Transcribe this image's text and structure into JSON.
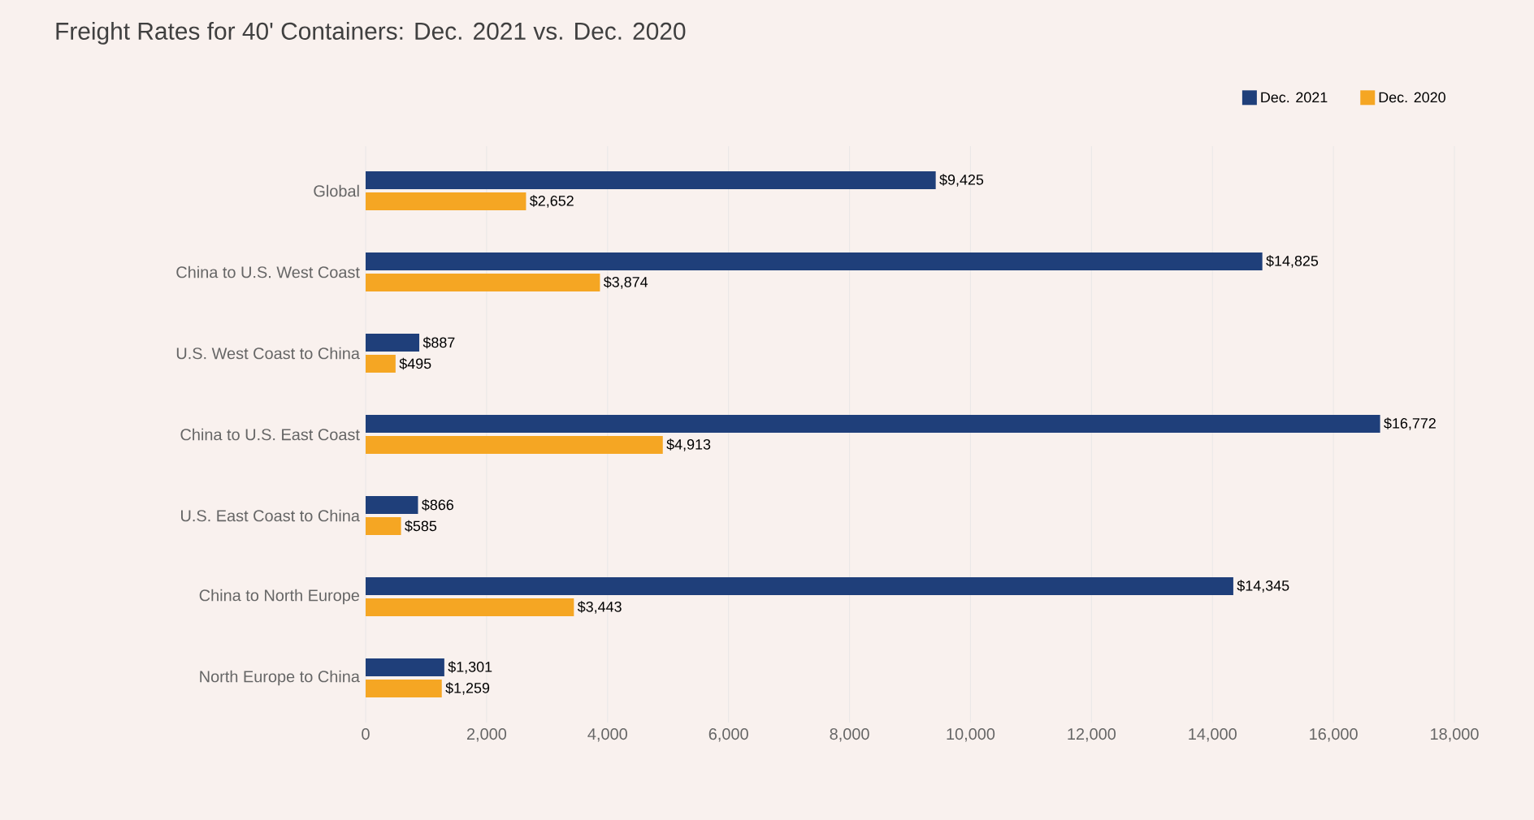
{
  "chart_data": {
    "type": "bar",
    "orientation": "horizontal",
    "title": "Freight Rates for 40' Containers: Dec. 2021 vs. Dec. 2020",
    "categories": [
      "Global",
      "China to U.S. West Coast",
      "U.S. West Coast to China",
      "China to U.S. East Coast",
      "U.S. East Coast to China",
      "China to North Europe",
      "North Europe to China"
    ],
    "series": [
      {
        "name": "Dec. 2021",
        "color": "#1f3f7a",
        "values": [
          9425,
          14825,
          887,
          16772,
          866,
          14345,
          1301
        ],
        "value_labels": [
          "$9,425",
          "$14,825",
          "$887",
          "$16,772",
          "$866",
          "$14,345",
          "$1,301"
        ]
      },
      {
        "name": "Dec. 2020",
        "color": "#f5a623",
        "values": [
          2652,
          3874,
          495,
          4913,
          585,
          3443,
          1259
        ],
        "value_labels": [
          "$2,652",
          "$3,874",
          "$495",
          "$4,913",
          "$585",
          "$3,443",
          "$1,259"
        ]
      }
    ],
    "xlim": [
      0,
      18000
    ],
    "xticks": [
      {
        "value": 0,
        "label": "0"
      },
      {
        "value": 2000,
        "label": "2,000"
      },
      {
        "value": 4000,
        "label": "4,000"
      },
      {
        "value": 6000,
        "label": "6,000"
      },
      {
        "value": 8000,
        "label": "8,000"
      },
      {
        "value": 10000,
        "label": "10,000"
      },
      {
        "value": 12000,
        "label": "12,000"
      },
      {
        "value": 14000,
        "label": "14,000"
      },
      {
        "value": 16000,
        "label": "16,000"
      },
      {
        "value": 18000,
        "label": "18,000"
      }
    ],
    "grid": "x",
    "legend": "top right"
  }
}
